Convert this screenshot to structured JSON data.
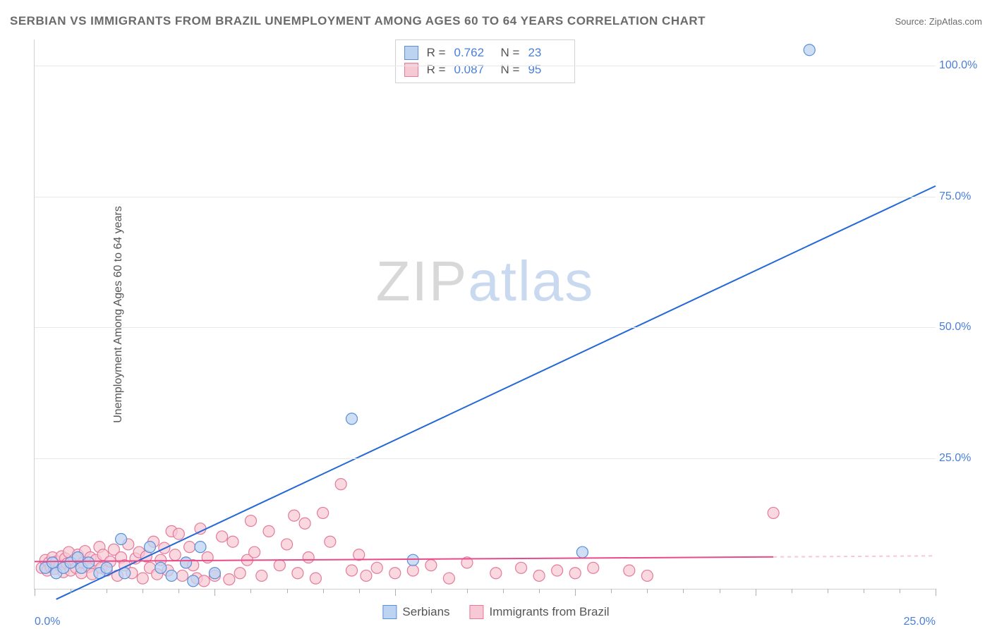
{
  "title": "SERBIAN VS IMMIGRANTS FROM BRAZIL UNEMPLOYMENT AMONG AGES 60 TO 64 YEARS CORRELATION CHART",
  "source_label": "Source: ",
  "source_name": "ZipAtlas.com",
  "y_axis_label": "Unemployment Among Ages 60 to 64 years",
  "watermark_zip": "ZIP",
  "watermark_atlas": "atlas",
  "chart": {
    "type": "scatter",
    "xlim": [
      0,
      25
    ],
    "ylim": [
      0,
      105
    ],
    "x_ticks_major": [
      0,
      5,
      10,
      15,
      20,
      25
    ],
    "x_ticks_minor_step": 1,
    "y_ticks": [
      25,
      50,
      75,
      100
    ],
    "x_tick_labels": {
      "0": "0.0%",
      "25": "25.0%"
    },
    "y_tick_labels": {
      "25": "25.0%",
      "50": "50.0%",
      "75": "75.0%",
      "100": "100.0%"
    },
    "grid_color": "#e8e8e8",
    "axis_color": "#d0d0d0",
    "background_color": "#ffffff",
    "tick_label_color": "#4a7fd8",
    "tick_label_fontsize": 16,
    "title_color": "#6b6b6b",
    "title_fontsize": 17
  },
  "series": {
    "serbians": {
      "label": "Serbians",
      "R": "0.762",
      "N": "23",
      "marker_fill": "#bcd3f2",
      "marker_stroke": "#5a8fd8",
      "marker_opacity": 0.75,
      "marker_radius": 8,
      "line_color": "#2468d8",
      "line_width": 2,
      "regression": {
        "x1": 0.6,
        "y1": -2,
        "x2": 25,
        "y2": 77
      },
      "points": [
        [
          0.3,
          4
        ],
        [
          0.5,
          5
        ],
        [
          0.6,
          3
        ],
        [
          0.8,
          4
        ],
        [
          1.0,
          5
        ],
        [
          1.2,
          6
        ],
        [
          1.3,
          4
        ],
        [
          1.5,
          5
        ],
        [
          1.8,
          3
        ],
        [
          2.0,
          4
        ],
        [
          2.4,
          9.5
        ],
        [
          2.5,
          3
        ],
        [
          3.2,
          8
        ],
        [
          3.5,
          4
        ],
        [
          3.8,
          2.5
        ],
        [
          4.2,
          5
        ],
        [
          4.4,
          1.5
        ],
        [
          4.6,
          8
        ],
        [
          5.0,
          3
        ],
        [
          8.8,
          32.5
        ],
        [
          10.5,
          5.5
        ],
        [
          15.2,
          7
        ],
        [
          21.5,
          103
        ]
      ]
    },
    "brazil": {
      "label": "Immigrants from Brazil",
      "R": "0.087",
      "N": "95",
      "marker_fill": "#f6c9d4",
      "marker_stroke": "#e57a9a",
      "marker_opacity": 0.72,
      "marker_radius": 8,
      "line_color": "#e94b8a",
      "line_width": 2,
      "regression": {
        "x1": 0,
        "y1": 5.2,
        "x2": 20.5,
        "y2": 6.1
      },
      "regression_dash_after_x": 20.5,
      "points": [
        [
          0.2,
          4
        ],
        [
          0.3,
          5.5
        ],
        [
          0.35,
          3.5
        ],
        [
          0.4,
          5
        ],
        [
          0.45,
          4.2
        ],
        [
          0.5,
          6
        ],
        [
          0.55,
          3.8
        ],
        [
          0.6,
          5.2
        ],
        [
          0.7,
          4.5
        ],
        [
          0.75,
          6.2
        ],
        [
          0.8,
          3.2
        ],
        [
          0.85,
          5.8
        ],
        [
          0.9,
          4.8
        ],
        [
          0.95,
          7
        ],
        [
          1.0,
          3.5
        ],
        [
          1.1,
          5.5
        ],
        [
          1.15,
          4
        ],
        [
          1.2,
          6.5
        ],
        [
          1.3,
          3
        ],
        [
          1.35,
          5
        ],
        [
          1.4,
          7.2
        ],
        [
          1.5,
          4.2
        ],
        [
          1.55,
          6
        ],
        [
          1.6,
          2.8
        ],
        [
          1.7,
          5.5
        ],
        [
          1.8,
          8
        ],
        [
          1.85,
          4
        ],
        [
          1.9,
          6.5
        ],
        [
          2.0,
          3.5
        ],
        [
          2.1,
          5.2
        ],
        [
          2.2,
          7.5
        ],
        [
          2.3,
          2.5
        ],
        [
          2.4,
          6
        ],
        [
          2.5,
          4.5
        ],
        [
          2.6,
          8.5
        ],
        [
          2.7,
          3
        ],
        [
          2.8,
          5.8
        ],
        [
          2.9,
          7
        ],
        [
          3.0,
          2
        ],
        [
          3.1,
          6.2
        ],
        [
          3.2,
          4
        ],
        [
          3.3,
          9
        ],
        [
          3.4,
          2.8
        ],
        [
          3.5,
          5.5
        ],
        [
          3.6,
          7.8
        ],
        [
          3.7,
          3.5
        ],
        [
          3.8,
          11
        ],
        [
          3.9,
          6.5
        ],
        [
          4.0,
          10.5
        ],
        [
          4.1,
          2.5
        ],
        [
          4.2,
          5
        ],
        [
          4.3,
          8
        ],
        [
          4.4,
          4.5
        ],
        [
          4.5,
          2
        ],
        [
          4.6,
          11.5
        ],
        [
          4.8,
          6
        ],
        [
          5.0,
          2.5
        ],
        [
          5.2,
          10
        ],
        [
          5.5,
          9
        ],
        [
          5.7,
          3
        ],
        [
          5.9,
          5.5
        ],
        [
          6.0,
          13
        ],
        [
          6.1,
          7
        ],
        [
          6.3,
          2.5
        ],
        [
          6.5,
          11
        ],
        [
          6.8,
          4.5
        ],
        [
          7.0,
          8.5
        ],
        [
          7.2,
          14
        ],
        [
          7.3,
          3
        ],
        [
          7.5,
          12.5
        ],
        [
          7.6,
          6
        ],
        [
          7.8,
          2
        ],
        [
          8.0,
          14.5
        ],
        [
          8.2,
          9
        ],
        [
          8.5,
          20
        ],
        [
          8.8,
          3.5
        ],
        [
          9.0,
          6.5
        ],
        [
          9.2,
          2.5
        ],
        [
          9.5,
          4
        ],
        [
          10.0,
          3
        ],
        [
          10.5,
          3.5
        ],
        [
          11.0,
          4.5
        ],
        [
          11.5,
          2
        ],
        [
          12.0,
          5
        ],
        [
          12.8,
          3
        ],
        [
          13.5,
          4
        ],
        [
          14.0,
          2.5
        ],
        [
          14.5,
          3.5
        ],
        [
          15.0,
          3
        ],
        [
          15.5,
          4
        ],
        [
          16.5,
          3.5
        ],
        [
          17.0,
          2.5
        ],
        [
          20.5,
          14.5
        ],
        [
          4.7,
          1.5
        ],
        [
          5.4,
          1.8
        ]
      ]
    }
  },
  "stats_legend": {
    "R_label": "R  =",
    "N_label": "N  ="
  }
}
